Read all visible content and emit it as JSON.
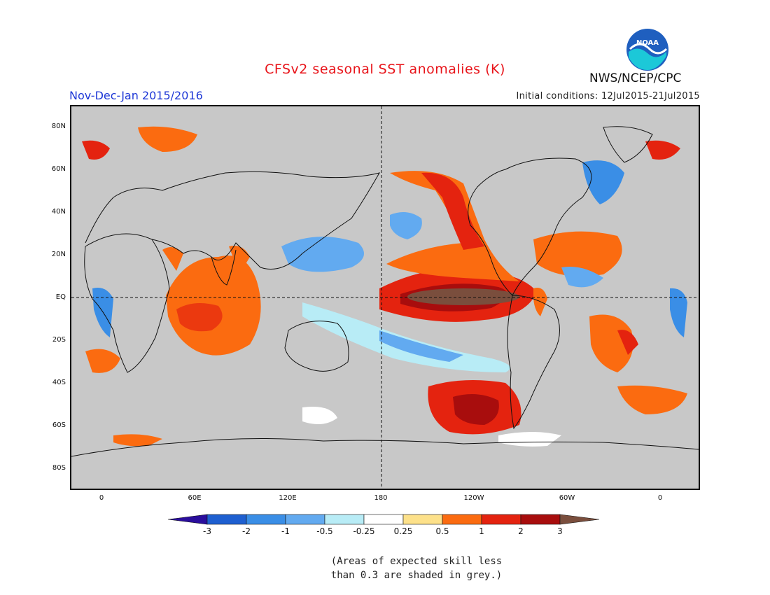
{
  "title": "CFSv2 seasonal SST anomalies (K)",
  "period": "Nov-Dec-Jan 2015/2016",
  "initial_conditions": "Initial conditions: 12Jul2015-21Jul2015",
  "organization": "NWS/NCEP/CPC",
  "logo_text": "NOAA",
  "lat_labels": [
    "80N",
    "60N",
    "40N",
    "20N",
    "EQ",
    "20S",
    "40S",
    "60S",
    "80S"
  ],
  "lon_labels": [
    "0",
    "60E",
    "120E",
    "180",
    "120W",
    "60W",
    "0"
  ],
  "colorbar": {
    "labels": [
      "-3",
      "-2",
      "-1",
      "-0.5",
      "-0.25",
      "0.25",
      "0.5",
      "1",
      "2",
      "3"
    ],
    "colors": [
      "#2a0e9c",
      "#1e5fd0",
      "#3a8ee6",
      "#62aaf0",
      "#b8ecf6",
      "#ffffff",
      "#fde18a",
      "#fb6b10",
      "#e4230f",
      "#a80d0d",
      "#7a4e3d"
    ]
  },
  "note_lines": [
    "(Areas of expected skill less",
    "than 0.3 are shaded in grey.)"
  ]
}
